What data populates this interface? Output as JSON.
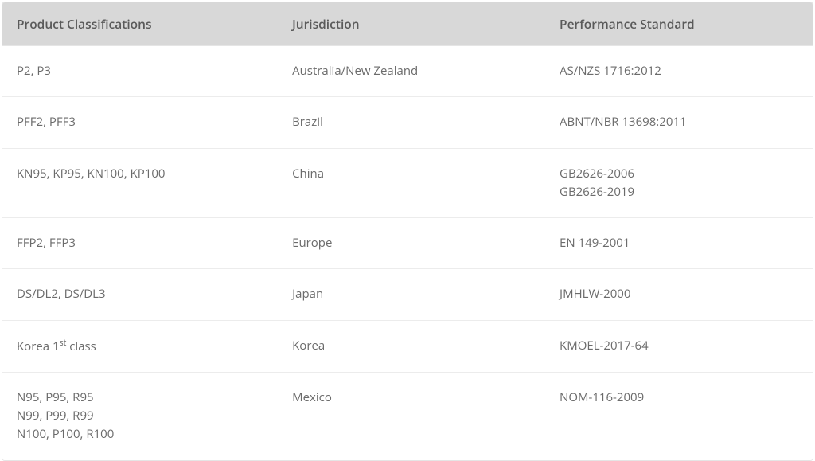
{
  "table": {
    "type": "table",
    "background_color": "#ffffff",
    "header_bg": "#d8d8d8",
    "header_text_color": "#5a5a5a",
    "body_text_color": "#6b6b6b",
    "border_color": "#e5e5e5",
    "row_border_color": "#ececec",
    "font_family": "Open Sans, Segoe UI, Arial, sans-serif",
    "header_fontsize": 15.5,
    "body_fontsize": 15,
    "columns": [
      {
        "label": "Product Classifications",
        "width_pct": 34
      },
      {
        "label": "Jurisdiction",
        "width_pct": 33
      },
      {
        "label": "Performance Standard",
        "width_pct": 33
      }
    ],
    "rows": [
      {
        "classification": "P2, P3",
        "jurisdiction": "Australia/New Zealand",
        "standard": "AS/NZS 1716:2012"
      },
      {
        "classification": "PFF2, PFF3",
        "jurisdiction": "Brazil",
        "standard": "ABNT/NBR 13698:2011"
      },
      {
        "classification": "KN95, KP95, KN100, KP100",
        "jurisdiction": "China",
        "standard": "GB2626-2006\nGB2626-2019"
      },
      {
        "classification": "FFP2, FFP3",
        "jurisdiction": "Europe",
        "standard": "EN 149-2001"
      },
      {
        "classification": "DS/DL2, DS/DL3",
        "jurisdiction": "Japan",
        "standard": "JMHLW-2000"
      },
      {
        "classification_html": "Korea 1<sup>st</sup> class",
        "classification": "Korea 1st class",
        "jurisdiction": "Korea",
        "standard": "KMOEL-2017-64"
      },
      {
        "classification": "N95, P95, R95\nN99, P99, R99\nN100, P100, R100",
        "jurisdiction": "Mexico",
        "standard": "NOM-116-2009"
      }
    ]
  }
}
